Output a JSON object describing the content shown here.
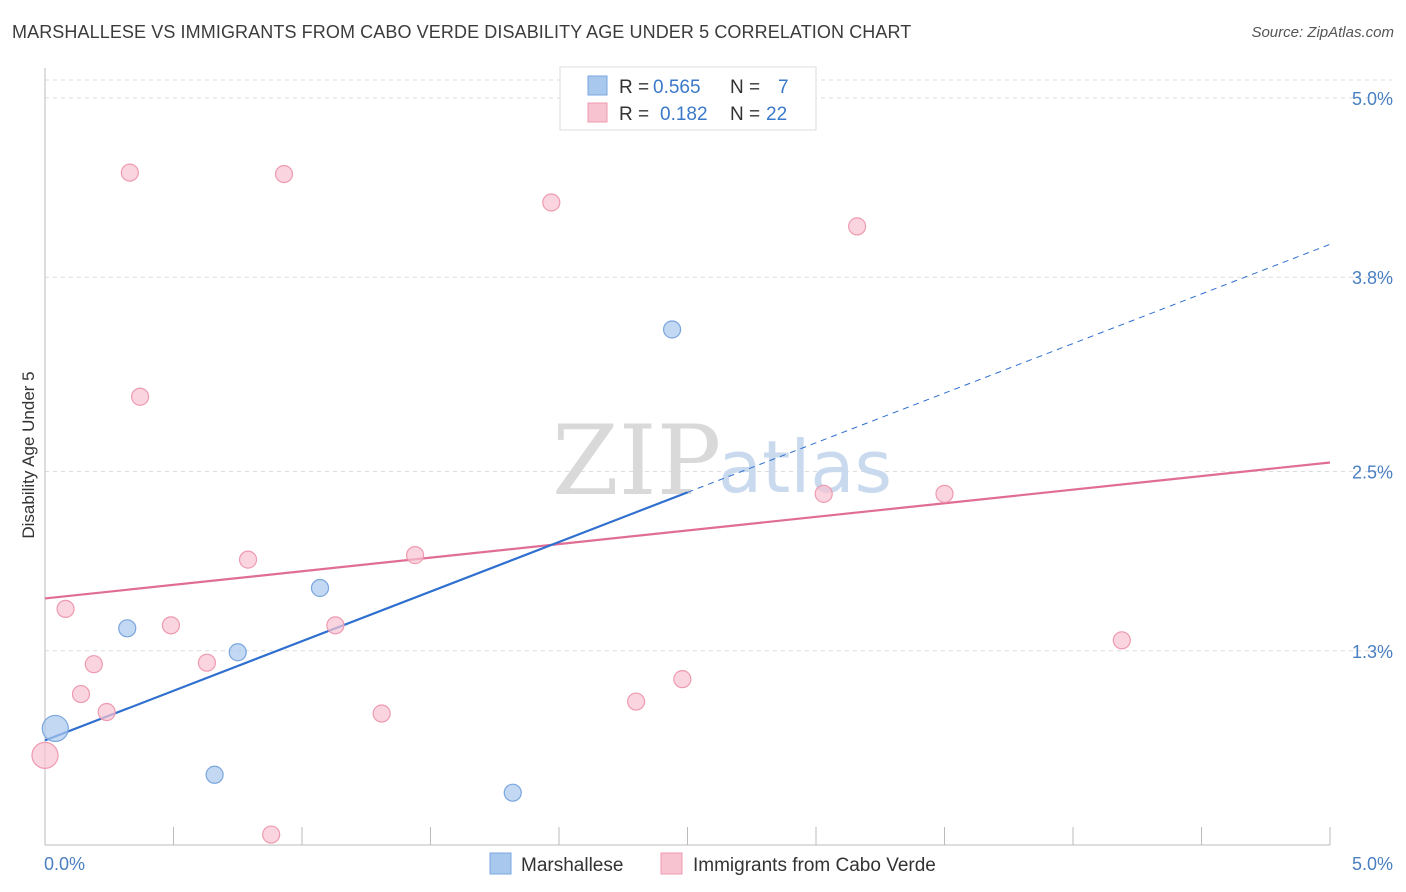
{
  "chart_data": {
    "type": "scatter",
    "title": "MARSHALLESE VS IMMIGRANTS FROM CABO VERDE DISABILITY AGE UNDER 5 CORRELATION CHART",
    "source": "Source: ZipAtlas.com",
    "xlabel": "",
    "ylabel": "Disability Age Under 5",
    "xlim": [
      0,
      5
    ],
    "ylim": [
      0,
      5.2
    ],
    "x_tick_labels": [
      "0.0%",
      "5.0%"
    ],
    "y_ticks": [
      1.3,
      2.5,
      3.8,
      5.0
    ],
    "y_tick_labels": [
      "1.3%",
      "2.5%",
      "3.8%",
      "5.0%"
    ],
    "grid": true,
    "legend_position": "top-center",
    "watermark": {
      "zip": "ZIP",
      "atlas": "atlas"
    },
    "series": [
      {
        "name": "Marshallese",
        "color": "#a8c8ee",
        "edge": "#7aa6de",
        "line_color": "#2f6fcf",
        "r_label": "R =",
        "r_value": "0.565",
        "n_label": "N =",
        "n_value": "7",
        "points": [
          {
            "x": 0.04,
            "y": 0.78,
            "big": true
          },
          {
            "x": 0.32,
            "y": 1.45
          },
          {
            "x": 0.66,
            "y": 0.47
          },
          {
            "x": 0.75,
            "y": 1.29
          },
          {
            "x": 1.07,
            "y": 1.72
          },
          {
            "x": 1.82,
            "y": 0.35
          },
          {
            "x": 2.44,
            "y": 3.45
          }
        ],
        "trend": {
          "x0": 0,
          "y0": 0.7,
          "x1": 2.5,
          "y1": 2.36,
          "dash_x1": 5.0,
          "dash_y1": 4.02
        }
      },
      {
        "name": "Immigrants from Cabo Verde",
        "color": "#f8c3d1",
        "edge": "#ee9ab0",
        "line_color": "#e06d93",
        "r_label": "R =",
        "r_value": "0.182",
        "n_label": "N =",
        "n_value": "22",
        "points": [
          {
            "x": 0.0,
            "y": 0.6,
            "big": true
          },
          {
            "x": 0.08,
            "y": 1.58
          },
          {
            "x": 0.14,
            "y": 1.01
          },
          {
            "x": 0.19,
            "y": 1.21
          },
          {
            "x": 0.24,
            "y": 0.89
          },
          {
            "x": 0.33,
            "y": 4.5
          },
          {
            "x": 0.37,
            "y": 3.0
          },
          {
            "x": 0.49,
            "y": 1.47
          },
          {
            "x": 0.63,
            "y": 1.22
          },
          {
            "x": 0.79,
            "y": 1.91
          },
          {
            "x": 0.88,
            "y": 0.07
          },
          {
            "x": 0.93,
            "y": 4.49
          },
          {
            "x": 1.13,
            "y": 1.47
          },
          {
            "x": 1.31,
            "y": 0.88
          },
          {
            "x": 1.44,
            "y": 1.94
          },
          {
            "x": 1.97,
            "y": 4.3
          },
          {
            "x": 2.3,
            "y": 0.96
          },
          {
            "x": 2.48,
            "y": 1.11
          },
          {
            "x": 3.03,
            "y": 2.35
          },
          {
            "x": 3.16,
            "y": 4.14
          },
          {
            "x": 3.5,
            "y": 2.35
          },
          {
            "x": 4.19,
            "y": 1.37
          }
        ],
        "trend": {
          "x0": 0,
          "y0": 1.65,
          "x1": 5.0,
          "y1": 2.56
        }
      }
    ]
  }
}
